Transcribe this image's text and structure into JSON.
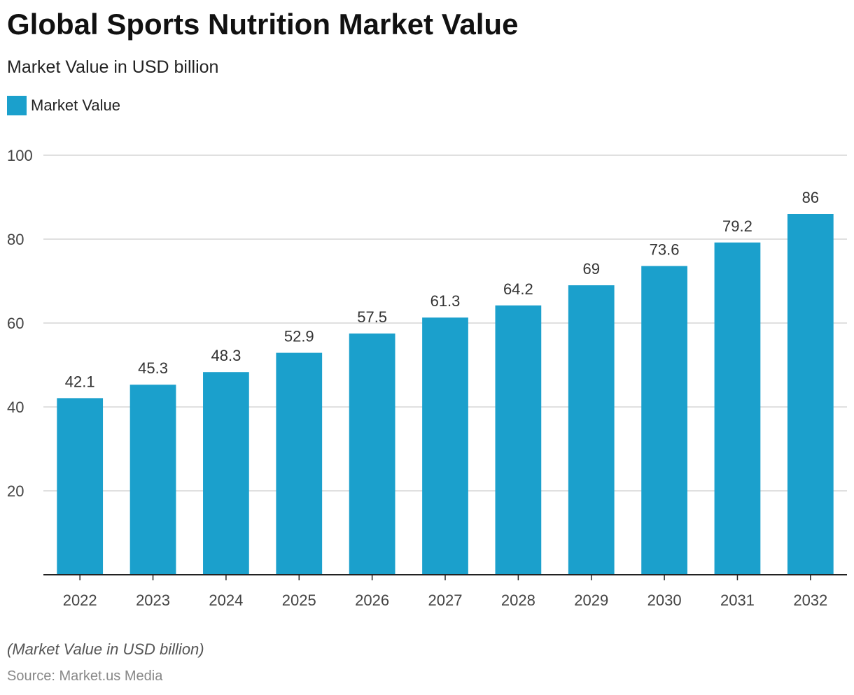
{
  "header": {
    "title": "Global Sports Nutrition Market Value",
    "subtitle": "Market Value in USD billion"
  },
  "legend": {
    "label": "Market Value",
    "color": "#1ba0cc"
  },
  "footer": {
    "note": "(Market Value in USD billion)",
    "source": "Source: Market.us Media"
  },
  "chart_data": {
    "type": "bar",
    "title": "Global Sports Nutrition Market Value",
    "subtitle": "Market Value in USD billion",
    "xlabel": "",
    "ylabel": "",
    "categories": [
      "2022",
      "2023",
      "2024",
      "2025",
      "2026",
      "2027",
      "2028",
      "2029",
      "2030",
      "2031",
      "2032"
    ],
    "series": [
      {
        "name": "Market Value",
        "values": [
          42.1,
          45.3,
          48.3,
          52.9,
          57.5,
          61.3,
          64.2,
          69,
          73.6,
          79.2,
          86
        ],
        "color": "#1ba0cc"
      }
    ],
    "ylim": [
      0,
      100
    ],
    "yticks": [
      20,
      40,
      60,
      80,
      100
    ],
    "grid": true,
    "legend_position": "top-left",
    "data_labels": true
  }
}
